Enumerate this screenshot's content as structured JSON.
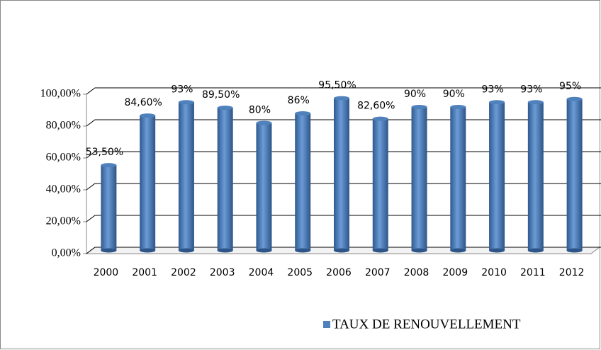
{
  "chart_data": {
    "type": "bar",
    "categories": [
      "2000",
      "2001",
      "2002",
      "2003",
      "2004",
      "2005",
      "2006",
      "2007",
      "2008",
      "2009",
      "2010",
      "2011",
      "2012"
    ],
    "series": [
      {
        "name": "TAUX DE RENOUVELLEMENT",
        "color": "#4f81bd",
        "values": [
          53.5,
          84.6,
          93,
          89.5,
          80,
          86,
          95.5,
          82.6,
          90,
          90,
          93,
          93,
          95
        ],
        "value_labels": [
          "53,50%",
          "84,60%",
          "93%",
          "89,50%",
          "80%",
          "86%",
          "95,50%",
          "82,60%",
          "90%",
          "90%",
          "93%",
          "93%",
          "95%"
        ]
      }
    ],
    "ylim": [
      0,
      100
    ],
    "yticks": [
      {
        "value": 0,
        "label": "0,00%"
      },
      {
        "value": 20,
        "label": "20,00%"
      },
      {
        "value": 40,
        "label": "40,00%"
      },
      {
        "value": 60,
        "label": "60,00%"
      },
      {
        "value": 80,
        "label": "80,00%"
      },
      {
        "value": 100,
        "label": "100,00%"
      }
    ],
    "grid": true,
    "legend": "bottom-right"
  }
}
